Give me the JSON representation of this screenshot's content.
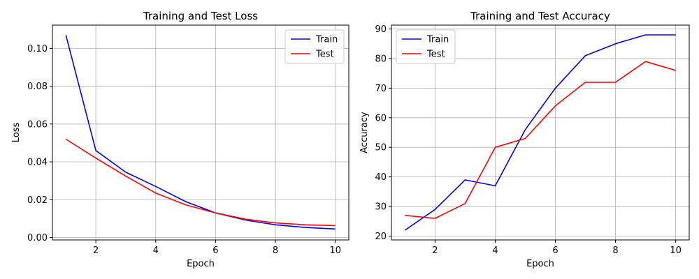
{
  "chart_data": [
    {
      "type": "line",
      "title": "Training and Test Loss",
      "xlabel": "Epoch",
      "ylabel": "Loss",
      "x": [
        1,
        2,
        3,
        4,
        5,
        6,
        7,
        8,
        9,
        10
      ],
      "xticks": [
        2,
        4,
        6,
        8,
        10
      ],
      "yticks": [
        0.0,
        0.02,
        0.04,
        0.06,
        0.08,
        0.1
      ],
      "ytick_labels": [
        "0.00",
        "0.02",
        "0.04",
        "0.06",
        "0.08",
        "0.10"
      ],
      "xlim": [
        0.55,
        10.45
      ],
      "ylim": [
        -0.0013,
        0.1123
      ],
      "grid": true,
      "legend_position": "upper right",
      "series": [
        {
          "name": "Train",
          "color": "#0000ff",
          "values": [
            0.107,
            0.046,
            0.0345,
            0.027,
            0.019,
            0.013,
            0.0092,
            0.0067,
            0.0053,
            0.0045
          ]
        },
        {
          "name": "Test",
          "color": "#ff0000",
          "values": [
            0.052,
            0.042,
            0.0325,
            0.0235,
            0.0173,
            0.013,
            0.0097,
            0.0077,
            0.0067,
            0.0063
          ]
        }
      ]
    },
    {
      "type": "line",
      "title": "Training and Test Accuracy",
      "xlabel": "Epoch",
      "ylabel": "Accuracy",
      "x": [
        1,
        2,
        3,
        4,
        5,
        6,
        7,
        8,
        9,
        10
      ],
      "xticks": [
        2,
        4,
        6,
        8,
        10
      ],
      "yticks": [
        20,
        30,
        40,
        50,
        60,
        70,
        80,
        90
      ],
      "ytick_labels": [
        "20",
        "30",
        "40",
        "50",
        "60",
        "70",
        "80",
        "90"
      ],
      "xlim": [
        0.55,
        10.45
      ],
      "ylim": [
        18.7,
        91.3
      ],
      "grid": true,
      "legend_position": "upper left",
      "series": [
        {
          "name": "Train",
          "color": "#0000ff",
          "values": [
            22,
            29,
            39,
            37,
            56,
            70,
            81,
            85,
            88,
            88
          ]
        },
        {
          "name": "Test",
          "color": "#ff0000",
          "values": [
            27,
            26,
            31,
            50,
            53,
            64,
            72,
            72,
            79,
            76
          ]
        }
      ]
    }
  ]
}
